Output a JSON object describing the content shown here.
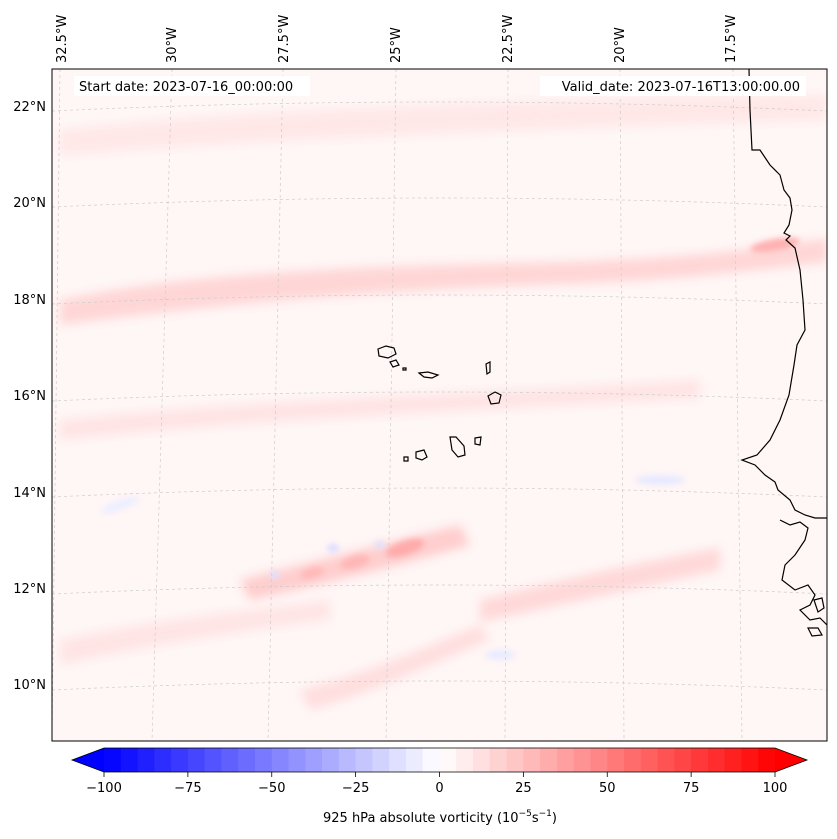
{
  "header": {
    "start_date": "Start date: 2023-07-16_00:00:00",
    "valid_date": "Valid_date: 2023-07-16T13:00:00.00"
  },
  "lon_labels": [
    "32.5°W",
    "30°W",
    "27.5°W",
    "25°W",
    "22.5°W",
    "20°W",
    "17.5°W"
  ],
  "lat_labels": [
    "22°N",
    "20°N",
    "18°N",
    "16°N",
    "14°N",
    "12°N",
    "10°N"
  ],
  "colorbar": {
    "ticks": [
      "−100",
      "−75",
      "−50",
      "−25",
      "0",
      "25",
      "50",
      "75",
      "100"
    ],
    "label": "925 hPa absolute vorticity (10",
    "label_exp1": "−5",
    "label_mid": "s",
    "label_exp2": "−1",
    "label_end": ")",
    "min": -100,
    "max": 100,
    "neg_color": "#0000ff",
    "zero_color": "#ffffff",
    "pos_color": "#ff0000"
  },
  "map": {
    "background_color": "#fff5f5",
    "coast_color": "#000000",
    "grid_color": "#cccccc",
    "features": [
      "cabo-verde-islands",
      "west-africa-coastline"
    ]
  }
}
